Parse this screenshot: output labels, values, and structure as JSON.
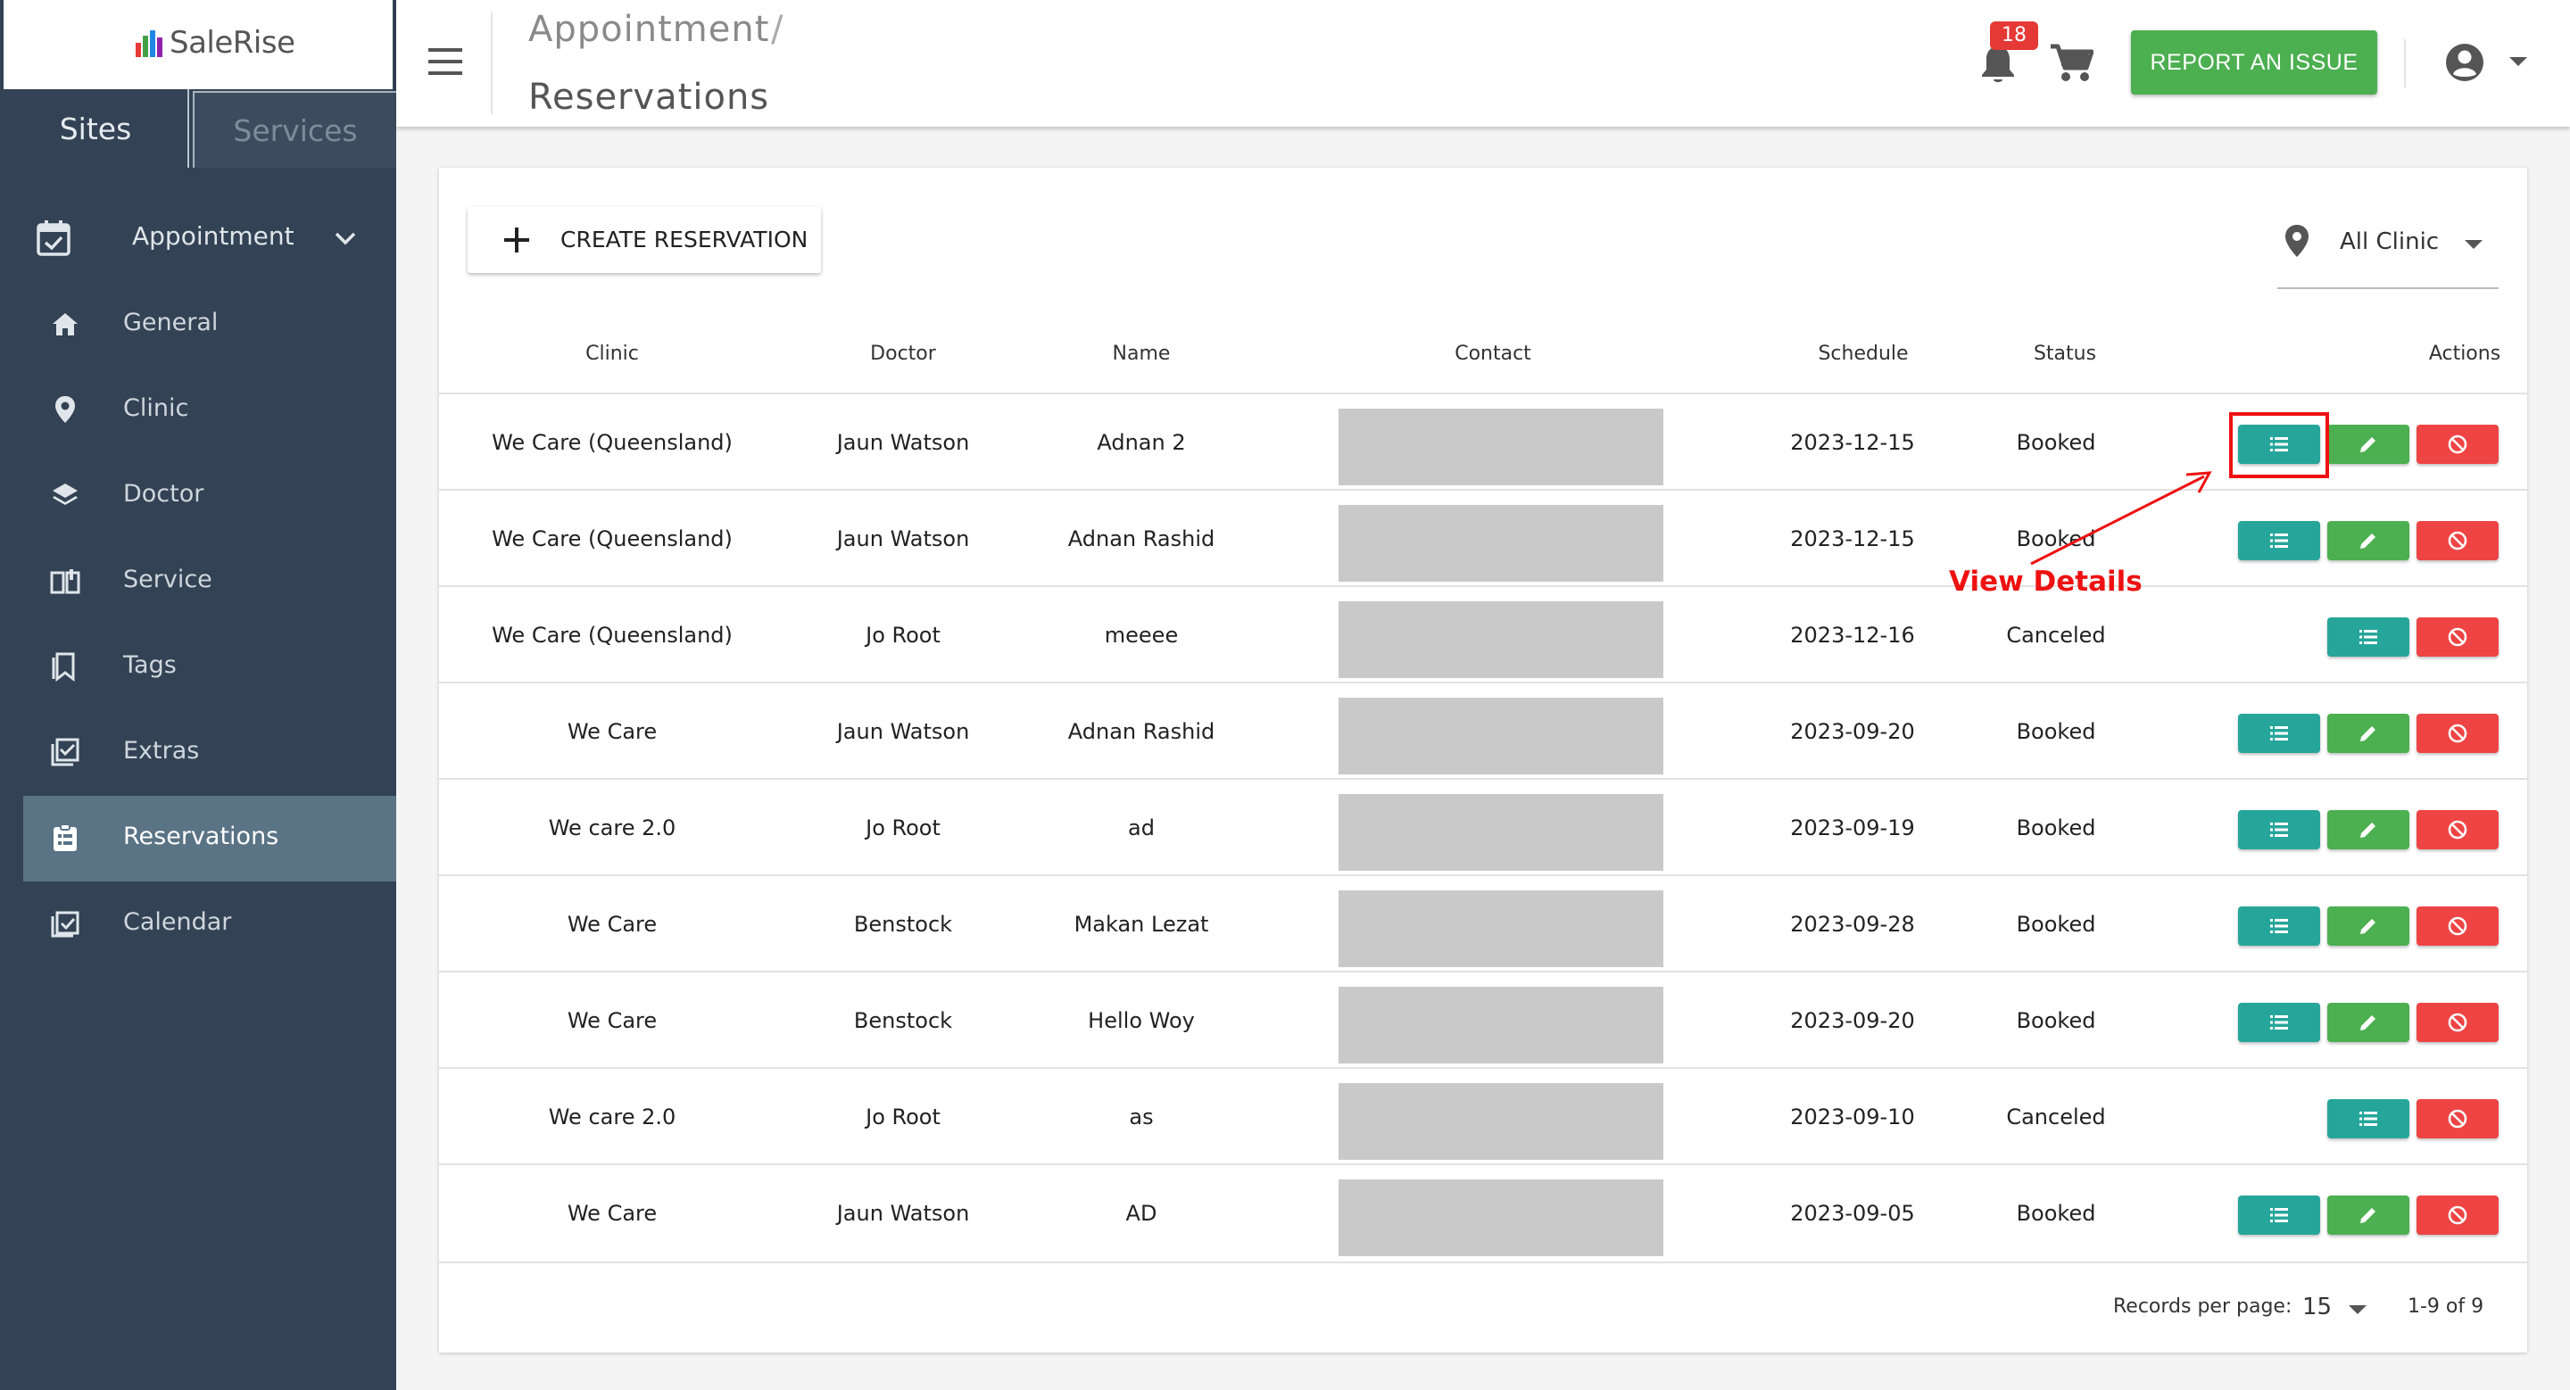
{
  "brand": {
    "name": "SaleRise"
  },
  "sidebar": {
    "tabs": [
      {
        "label": "Sites"
      },
      {
        "label": "Services"
      }
    ],
    "menu_heading": "Appointment",
    "items": [
      {
        "label": "General",
        "icon": "home-icon"
      },
      {
        "label": "Clinic",
        "icon": "location-pin-icon"
      },
      {
        "label": "Doctor",
        "icon": "layers-icon"
      },
      {
        "label": "Service",
        "icon": "book-open-icon"
      },
      {
        "label": "Tags",
        "icon": "bookmark-icon"
      },
      {
        "label": "Extras",
        "icon": "checklist-icon"
      },
      {
        "label": "Reservations",
        "icon": "clipboard-icon",
        "active": true
      },
      {
        "label": "Calendar",
        "icon": "calendar-check-icon"
      }
    ]
  },
  "header": {
    "breadcrumb_parent": "Appointment",
    "breadcrumb_separator": "/",
    "title": "Reservations",
    "notification_count": "18",
    "report_button": "REPORT AN ISSUE"
  },
  "toolbar": {
    "create_button": "CREATE RESERVATION",
    "clinic_filter": "All Clinic"
  },
  "table": {
    "columns": [
      "Clinic",
      "Doctor",
      "Name",
      "Contact",
      "Schedule",
      "Status",
      "Actions"
    ],
    "rows": [
      {
        "clinic": "We Care (Queensland)",
        "doctor": "Jaun Watson",
        "name": "Adnan 2",
        "schedule": "2023-12-15",
        "status": "Booked"
      },
      {
        "clinic": "We Care (Queensland)",
        "doctor": "Jaun Watson",
        "name": "Adnan Rashid",
        "schedule": "2023-12-15",
        "status": "Booked"
      },
      {
        "clinic": "We Care (Queensland)",
        "doctor": "Jo Root",
        "name": "meeee",
        "schedule": "2023-12-16",
        "status": "Canceled"
      },
      {
        "clinic": "We Care",
        "doctor": "Jaun Watson",
        "name": "Adnan Rashid",
        "schedule": "2023-09-20",
        "status": "Booked"
      },
      {
        "clinic": "We care 2.0",
        "doctor": "Jo Root",
        "name": "ad",
        "schedule": "2023-09-19",
        "status": "Booked"
      },
      {
        "clinic": "We Care",
        "doctor": "Benstock",
        "name": "Makan Lezat",
        "schedule": "2023-09-28",
        "status": "Booked"
      },
      {
        "clinic": "We Care",
        "doctor": "Benstock",
        "name": "Hello Woy",
        "schedule": "2023-09-20",
        "status": "Booked"
      },
      {
        "clinic": "We care 2.0",
        "doctor": "Jo Root",
        "name": "as",
        "schedule": "2023-09-10",
        "status": "Canceled"
      },
      {
        "clinic": "We Care",
        "doctor": "Jaun Watson",
        "name": "AD",
        "schedule": "2023-09-05",
        "status": "Booked"
      }
    ]
  },
  "pagination": {
    "records_per_page_label": "Records per page:",
    "records_per_page": "15",
    "range": "1-9 of 9"
  },
  "annotation": {
    "label": "View Details"
  },
  "colors": {
    "sidebar_bg": "#334254",
    "sidebar_active": "#5a7385",
    "view_button": "#26a69a",
    "edit_button": "#4caf50",
    "cancel_button": "#ef4444",
    "report_button": "#4caf50",
    "annotation": "#ee1111"
  }
}
